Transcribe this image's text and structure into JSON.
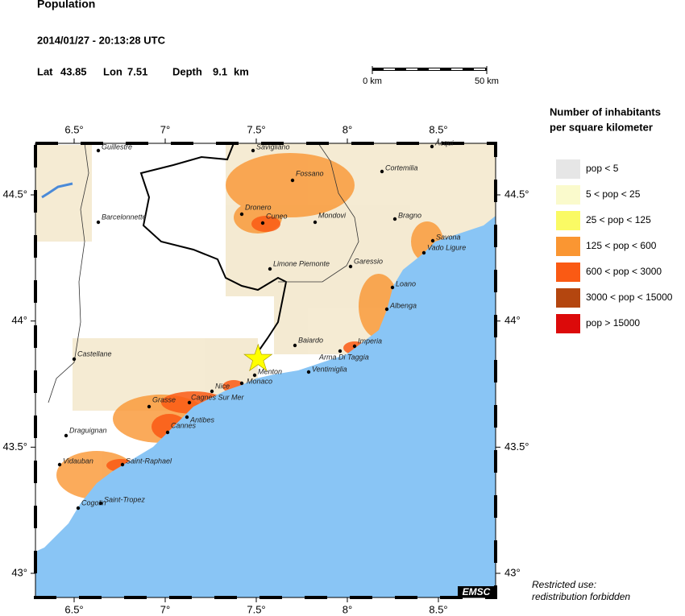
{
  "header": {
    "title": "Population",
    "datetime": "2014/01/27 - 20:13:28 UTC",
    "lat_label": "Lat",
    "lat": 43.85,
    "lon_label": "Lon",
    "lon": 7.51,
    "depth_label": "Depth",
    "depth": 9.1,
    "depth_unit": "km"
  },
  "scale_bar": {
    "labels": [
      "0 km",
      "50 km"
    ]
  },
  "legend": {
    "title_lines": [
      "Number of inhabitants",
      "per square kilometer"
    ],
    "items": [
      {
        "label": "pop < 5",
        "color": "#e6e6e6"
      },
      {
        "label": "5 < pop < 25",
        "color": "#fafacc"
      },
      {
        "label": "25 < pop < 125",
        "color": "#fafa64"
      },
      {
        "label": "125 < pop < 600",
        "color": "#fa9632"
      },
      {
        "label": "600 < pop < 3000",
        "color": "#fa5a14"
      },
      {
        "label": "3000 < pop < 15000",
        "color": "#b4460f"
      },
      {
        "label": "pop > 15000",
        "color": "#dc0a0a"
      }
    ]
  },
  "map": {
    "xticks": [
      {
        "value": 6.5,
        "label": "6.5°"
      },
      {
        "value": 7,
        "label": "7°"
      },
      {
        "value": 7.5,
        "label": "7.5°"
      },
      {
        "value": 8,
        "label": "8°"
      },
      {
        "value": 8.5,
        "label": "8.5°"
      }
    ],
    "yticks": [
      {
        "value": 43,
        "label": "43°"
      },
      {
        "value": 43.5,
        "label": "43.5°"
      },
      {
        "value": 44,
        "label": "44°"
      },
      {
        "value": 44.5,
        "label": "44.5°"
      }
    ],
    "cities": [
      "Guillestre",
      "Savigliano",
      "Acqui",
      "Fossano",
      "Cortemilia",
      "Dronero",
      "Cuneo",
      "Mondovi",
      "Barcelonnette",
      "Bragno",
      "Savona",
      "Vado Ligure",
      "Limone Piemonte",
      "Garessio",
      "Loano",
      "Albenga",
      "Castellane",
      "Baiardo",
      "Imperia",
      "Arma Di Taggia",
      "Ventimiglia",
      "Menton",
      "Monaco",
      "Nice",
      "Cagnes Sur Mer",
      "Grasse",
      "Antibes",
      "Cannes",
      "Draguignan",
      "Vidauban",
      "Saint-Raphael",
      "Cogolin",
      "Saint-Tropez"
    ],
    "epicenter_color": "#ffff00",
    "credit": "EMSC"
  },
  "note": [
    "Restricted use:",
    "redistribution forbidden"
  ]
}
